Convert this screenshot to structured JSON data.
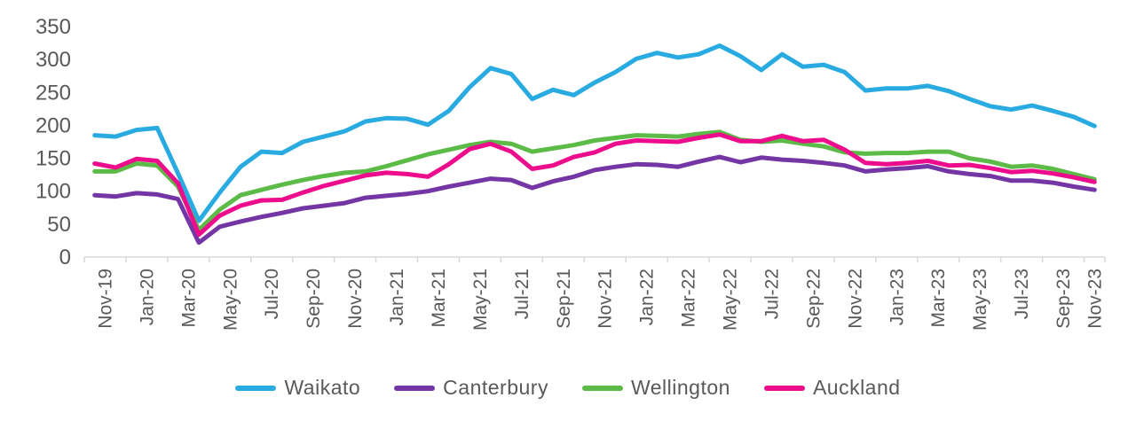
{
  "chart_data": {
    "type": "line",
    "title": "",
    "xlabel": "",
    "ylabel": "",
    "ylim": [
      0,
      350
    ],
    "y_ticks": [
      0,
      50,
      100,
      150,
      200,
      250,
      300,
      350
    ],
    "grid": false,
    "legend_position": "bottom",
    "x_tick_label_rotation": -90,
    "x_tick_labels_visible": [
      "Nov-19",
      "Jan-20",
      "Mar-20",
      "May-20",
      "Jul-20",
      "Sep-20",
      "Nov-20",
      "Jan-21",
      "Mar-21",
      "May-21",
      "Jul-21",
      "Sep-21",
      "Nov-21",
      "Jan-22",
      "Mar-22",
      "May-22",
      "Jul-22",
      "Sep-22",
      "Nov-22",
      "Jan-23",
      "Mar-23",
      "May-23",
      "Jul-23",
      "Sep-23",
      "Nov-23"
    ],
    "categories": [
      "Nov-19",
      "Dec-19",
      "Jan-20",
      "Feb-20",
      "Mar-20",
      "Apr-20",
      "May-20",
      "Jun-20",
      "Jul-20",
      "Aug-20",
      "Sep-20",
      "Oct-20",
      "Nov-20",
      "Dec-20",
      "Jan-21",
      "Feb-21",
      "Mar-21",
      "Apr-21",
      "May-21",
      "Jun-21",
      "Jul-21",
      "Aug-21",
      "Sep-21",
      "Oct-21",
      "Nov-21",
      "Dec-21",
      "Jan-22",
      "Feb-22",
      "Mar-22",
      "Apr-22",
      "May-22",
      "Jun-22",
      "Jul-22",
      "Aug-22",
      "Sep-22",
      "Oct-22",
      "Nov-22",
      "Dec-22",
      "Jan-23",
      "Feb-23",
      "Mar-23",
      "Apr-23",
      "May-23",
      "Jun-23",
      "Jul-23",
      "Aug-23",
      "Sep-23",
      "Oct-23",
      "Nov-23"
    ],
    "series": [
      {
        "name": "Waikato",
        "color": "#29abe2",
        "values": [
          185,
          183,
          193,
          196,
          127,
          55,
          98,
          137,
          160,
          158,
          175,
          183,
          191,
          206,
          211,
          210,
          201,
          222,
          258,
          287,
          278,
          240,
          254,
          246,
          265,
          281,
          301,
          310,
          303,
          308,
          321,
          305,
          284,
          308,
          289,
          292,
          281,
          253,
          256,
          256,
          260,
          252,
          240,
          229,
          224,
          230,
          222,
          213,
          199
        ]
      },
      {
        "name": "Canterbury",
        "color": "#7436a4",
        "values": [
          94,
          92,
          97,
          95,
          88,
          22,
          46,
          54,
          61,
          67,
          74,
          78,
          82,
          90,
          93,
          96,
          100,
          107,
          113,
          119,
          117,
          105,
          115,
          122,
          132,
          137,
          141,
          140,
          137,
          145,
          152,
          144,
          151,
          148,
          146,
          143,
          139,
          130,
          133,
          135,
          138,
          130,
          126,
          123,
          116,
          116,
          113,
          107,
          102
        ]
      },
      {
        "name": "Wellington",
        "color": "#5cba47",
        "values": [
          130,
          130,
          142,
          139,
          107,
          41,
          72,
          94,
          102,
          110,
          117,
          123,
          128,
          130,
          138,
          147,
          156,
          163,
          170,
          175,
          172,
          160,
          165,
          170,
          177,
          181,
          185,
          184,
          183,
          187,
          190,
          178,
          175,
          177,
          172,
          168,
          159,
          157,
          158,
          158,
          160,
          160,
          150,
          145,
          137,
          139,
          134,
          126,
          118
        ]
      },
      {
        "name": "Auckland",
        "color": "#ec0c8c",
        "values": [
          142,
          136,
          149,
          146,
          112,
          34,
          63,
          78,
          86,
          87,
          98,
          108,
          116,
          124,
          128,
          126,
          122,
          141,
          164,
          172,
          160,
          134,
          139,
          152,
          159,
          172,
          177,
          176,
          175,
          181,
          186,
          176,
          176,
          184,
          176,
          178,
          163,
          143,
          141,
          143,
          146,
          139,
          140,
          135,
          129,
          131,
          127,
          121,
          114
        ]
      }
    ],
    "axis_color": "#d9d9d9",
    "tick_label_color": "#595959",
    "line_width": 5
  }
}
